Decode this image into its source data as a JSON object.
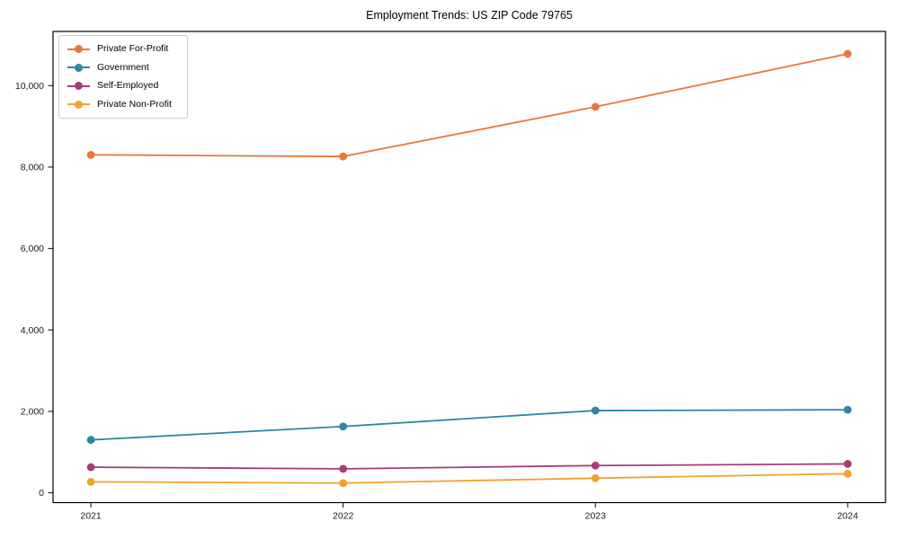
{
  "chart_data": {
    "type": "line",
    "title": "Employment Trends: US ZIP Code 79765",
    "x": [
      2021,
      2022,
      2023,
      2024
    ],
    "x_tick_labels": [
      "2021",
      "2022",
      "2023",
      "2024"
    ],
    "y_ticks": [
      0,
      2000,
      4000,
      6000,
      8000,
      10000
    ],
    "y_tick_labels": [
      "0",
      "2,000",
      "4,000",
      "6,000",
      "8,000",
      "10,000"
    ],
    "xlim": [
      2020.85,
      2024.15
    ],
    "ylim": [
      -240,
      11330
    ],
    "grid": false,
    "legend_position": "upper-left",
    "marker": "circle",
    "axis_color": "#000000",
    "series": [
      {
        "name": "Private For-Profit",
        "color": "#E8773C",
        "values": [
          8300,
          8260,
          9480,
          10780
        ]
      },
      {
        "name": "Government",
        "color": "#2D87A5",
        "values": [
          1300,
          1630,
          2020,
          2040
        ]
      },
      {
        "name": "Self-Employed",
        "color": "#A43C7C",
        "values": [
          630,
          590,
          670,
          710
        ]
      },
      {
        "name": "Private Non-Profit",
        "color": "#F0A22E",
        "values": [
          270,
          240,
          360,
          470
        ]
      }
    ]
  }
}
